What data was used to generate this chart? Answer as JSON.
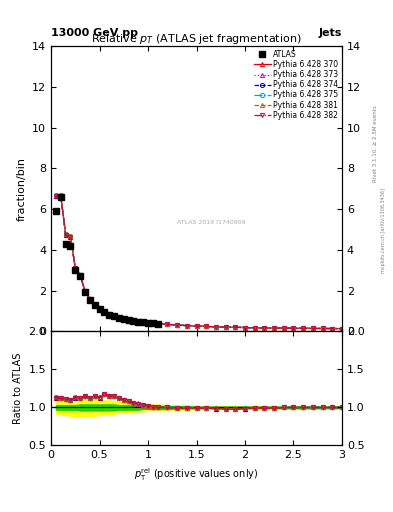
{
  "title": "Relative $p_T$ (ATLAS jet fragmentation)",
  "header_left": "13000 GeV pp",
  "header_right": "Jets",
  "ylabel_main": "fraction/bin",
  "ylabel_ratio": "Ratio to ATLAS",
  "xlabel": "$p_{\\mathrm{T}}^{\\mathrm{rel}}$ (positive values only)",
  "rivet_text": "Rivet 3.1.10, ≥ 2.5M events",
  "arxiv_text": "mcplots.cern.ch [arXiv:1306.3436]",
  "stamp_text": "ATLAS 2019 I1740909",
  "ylim_main": [
    0,
    14
  ],
  "ylim_ratio": [
    0.5,
    2.0
  ],
  "xlim": [
    0,
    3
  ],
  "x_data": [
    0.05,
    0.1,
    0.15,
    0.2,
    0.25,
    0.3,
    0.35,
    0.4,
    0.45,
    0.5,
    0.55,
    0.6,
    0.65,
    0.7,
    0.75,
    0.8,
    0.85,
    0.9,
    0.95,
    1.0,
    1.05,
    1.1,
    1.2,
    1.3,
    1.4,
    1.5,
    1.6,
    1.7,
    1.8,
    1.9,
    2.0,
    2.1,
    2.2,
    2.3,
    2.4,
    2.5,
    2.6,
    2.7,
    2.8,
    2.9,
    3.0
  ],
  "atlas_y": [
    5.9,
    6.6,
    4.3,
    4.2,
    3.0,
    2.7,
    1.95,
    1.55,
    1.3,
    1.1,
    0.95,
    0.82,
    0.73,
    0.67,
    0.61,
    0.56,
    0.52,
    0.48,
    0.44,
    0.41,
    0.39,
    0.37,
    0.33,
    0.3,
    0.27,
    0.25,
    0.23,
    0.21,
    0.2,
    0.19,
    0.18,
    0.17,
    0.165,
    0.16,
    0.155,
    0.15,
    0.145,
    0.14,
    0.138,
    0.135,
    0.132
  ],
  "pythia_y": [
    6.65,
    6.65,
    4.75,
    4.65,
    3.1,
    2.75,
    1.98,
    1.58,
    1.32,
    1.12,
    0.97,
    0.84,
    0.75,
    0.68,
    0.62,
    0.57,
    0.53,
    0.49,
    0.45,
    0.42,
    0.4,
    0.38,
    0.34,
    0.31,
    0.28,
    0.26,
    0.24,
    0.22,
    0.21,
    0.2,
    0.185,
    0.175,
    0.168,
    0.162,
    0.158,
    0.153,
    0.148,
    0.143,
    0.14,
    0.137,
    0.134
  ],
  "ratio_y": [
    1.13,
    1.12,
    1.11,
    1.1,
    1.13,
    1.12,
    1.15,
    1.12,
    1.15,
    1.13,
    1.18,
    1.15,
    1.15,
    1.12,
    1.1,
    1.08,
    1.06,
    1.05,
    1.03,
    1.02,
    1.01,
    1.0,
    1.0,
    0.99,
    0.99,
    0.99,
    0.99,
    0.985,
    0.98,
    0.98,
    0.985,
    0.99,
    0.99,
    0.99,
    1.0,
    1.0,
    1.0,
    1.0,
    1.0,
    1.0,
    1.0
  ],
  "green_band_upper": [
    1.03,
    1.03,
    1.03,
    1.03,
    1.03,
    1.04,
    1.04,
    1.04,
    1.04,
    1.04,
    1.04,
    1.04,
    1.04,
    1.03,
    1.03,
    1.03,
    1.03,
    1.03,
    1.02,
    1.02,
    1.02,
    1.02,
    1.02,
    1.015,
    1.015,
    1.01,
    1.01,
    1.01,
    1.01,
    1.01,
    1.01,
    1.01,
    1.01,
    1.01,
    1.01,
    1.01,
    1.01,
    1.01,
    1.01,
    1.01,
    1.01
  ],
  "green_band_lower": [
    0.97,
    0.97,
    0.97,
    0.97,
    0.97,
    0.96,
    0.96,
    0.96,
    0.96,
    0.96,
    0.96,
    0.96,
    0.96,
    0.97,
    0.97,
    0.97,
    0.97,
    0.97,
    0.98,
    0.98,
    0.98,
    0.98,
    0.98,
    0.985,
    0.985,
    0.99,
    0.99,
    0.99,
    0.99,
    0.99,
    0.99,
    0.99,
    0.99,
    0.99,
    0.99,
    0.99,
    0.99,
    0.99,
    0.99,
    0.99,
    0.99
  ],
  "yellow_band_upper": [
    1.08,
    1.09,
    1.1,
    1.11,
    1.12,
    1.12,
    1.12,
    1.11,
    1.11,
    1.1,
    1.09,
    1.09,
    1.08,
    1.07,
    1.07,
    1.06,
    1.06,
    1.05,
    1.05,
    1.04,
    1.04,
    1.04,
    1.03,
    1.03,
    1.03,
    1.02,
    1.02,
    1.02,
    1.02,
    1.02,
    1.02,
    1.02,
    1.02,
    1.02,
    1.02,
    1.02,
    1.02,
    1.015,
    1.015,
    1.01,
    1.01
  ],
  "yellow_band_lower": [
    0.92,
    0.91,
    0.9,
    0.89,
    0.88,
    0.88,
    0.88,
    0.89,
    0.89,
    0.9,
    0.91,
    0.91,
    0.92,
    0.93,
    0.93,
    0.94,
    0.94,
    0.95,
    0.95,
    0.96,
    0.96,
    0.96,
    0.97,
    0.97,
    0.97,
    0.98,
    0.98,
    0.98,
    0.98,
    0.98,
    0.98,
    0.98,
    0.98,
    0.98,
    0.98,
    0.98,
    0.98,
    0.985,
    0.985,
    0.99,
    0.99
  ],
  "line_colors": [
    "#e8000b",
    "#cc00cc",
    "#0000cc",
    "#00aaaa",
    "#bb6600",
    "#cc0044"
  ],
  "line_styles": [
    "-",
    ":",
    "--",
    "-.",
    "--",
    "-."
  ],
  "line_markers": [
    "^",
    "^",
    "o",
    "o",
    "^",
    "v"
  ],
  "line_offsets": [
    0.0,
    0.002,
    -0.002,
    0.003,
    0.005,
    -0.003
  ],
  "legend_labels": [
    "ATLAS",
    "Pythia 6.428 370",
    "Pythia 6.428 373",
    "Pythia 6.428 374",
    "Pythia 6.428 375",
    "Pythia 6.428 381",
    "Pythia 6.428 382"
  ],
  "yticks_main": [
    0,
    2,
    4,
    6,
    8,
    10,
    12,
    14
  ],
  "yticks_ratio": [
    0.5,
    1.0,
    1.5,
    2.0
  ],
  "xticks": [
    0,
    0.5,
    1.0,
    1.5,
    2.0,
    2.5,
    3.0
  ]
}
